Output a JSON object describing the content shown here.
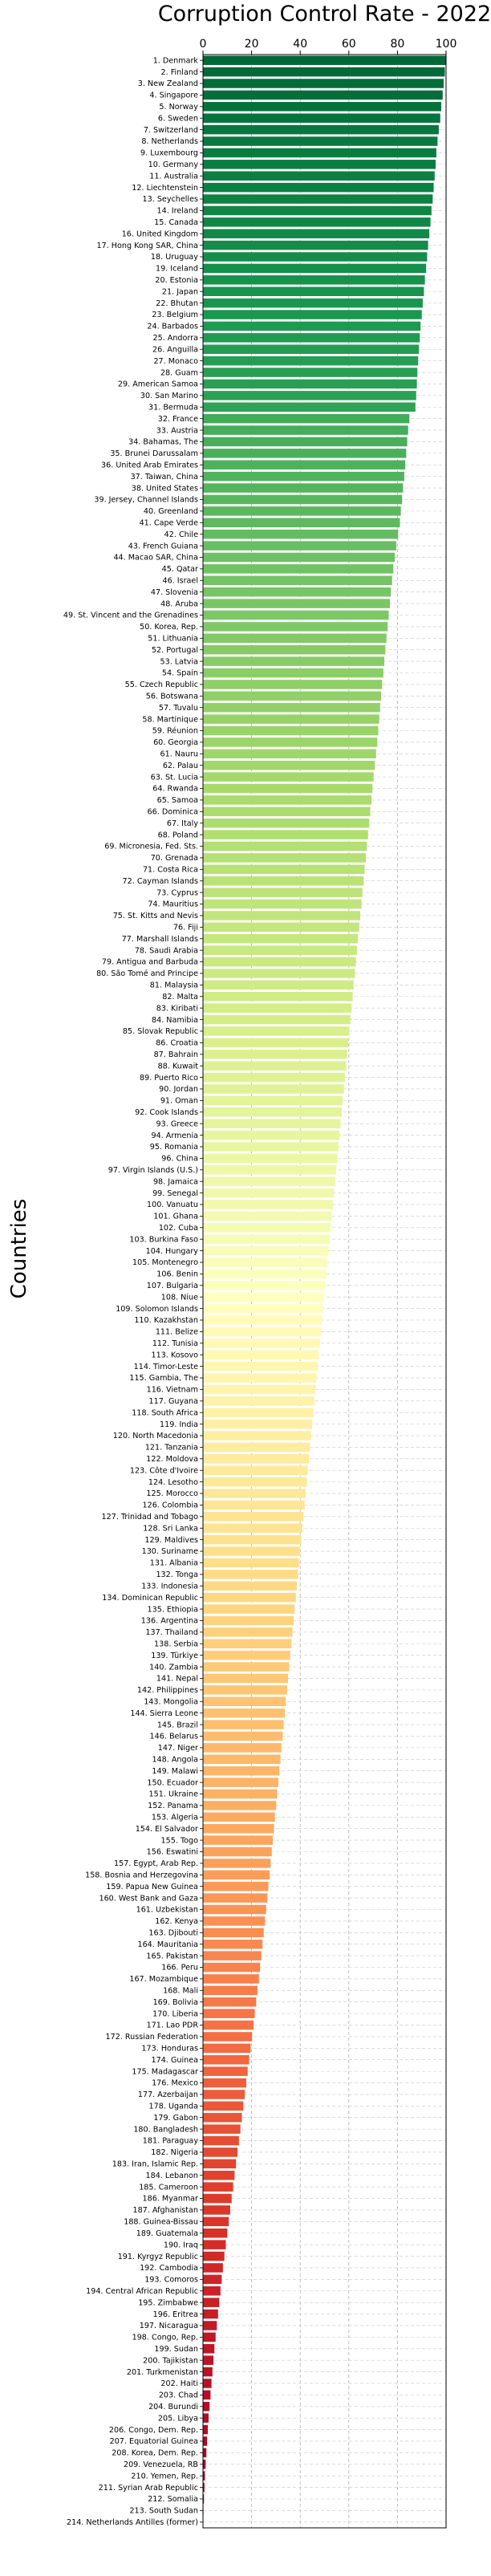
{
  "chart_data": {
    "type": "bar",
    "orientation": "horizontal",
    "title": "Corruption Control Rate - 2022",
    "xlabel": "",
    "ylabel": "Countries",
    "xlim": [
      0,
      100
    ],
    "xticks": [
      "0",
      "20",
      "40",
      "60",
      "80",
      "100"
    ],
    "x_axis_position": "top",
    "grid": true,
    "colormap": "red-yellow-green",
    "categories": [
      "1. Denmark",
      "2. Finland",
      "3. New Zealand",
      "4. Singapore",
      "5. Norway",
      "6. Sweden",
      "7. Switzerland",
      "8. Netherlands",
      "9. Luxembourg",
      "10. Germany",
      "11. Australia",
      "12. Liechtenstein",
      "13. Seychelles",
      "14. Ireland",
      "15. Canada",
      "16. United Kingdom",
      "17. Hong Kong SAR, China",
      "18. Uruguay",
      "19. Iceland",
      "20. Estonia",
      "21. Japan",
      "22. Bhutan",
      "23. Belgium",
      "24. Barbados",
      "25. Andorra",
      "26. Anguilla",
      "27. Monaco",
      "28. Guam",
      "29. American Samoa",
      "30. San Marino",
      "31. Bermuda",
      "32. France",
      "33. Austria",
      "34. Bahamas, The",
      "35. Brunei Darussalam",
      "36. United Arab Emirates",
      "37. Taiwan, China",
      "38. United States",
      "39. Jersey, Channel Islands",
      "40. Greenland",
      "41. Cape Verde",
      "42. Chile",
      "43. French Guiana",
      "44. Macao SAR, China",
      "45. Qatar",
      "46. Israel",
      "47. Slovenia",
      "48. Aruba",
      "49. St. Vincent and the Grenadines",
      "50. Korea, Rep.",
      "51. Lithuania",
      "52. Portugal",
      "53. Latvia",
      "54. Spain",
      "55. Czech Republic",
      "56. Botswana",
      "57. Tuvalu",
      "58. Martinique",
      "59. Réunion",
      "60. Georgia",
      "61. Nauru",
      "62. Palau",
      "63. St. Lucia",
      "64. Rwanda",
      "65. Samoa",
      "66. Dominica",
      "67. Italy",
      "68. Poland",
      "69. Micronesia, Fed. Sts.",
      "70. Grenada",
      "71. Costa Rica",
      "72. Cayman Islands",
      "73. Cyprus",
      "74. Mauritius",
      "75. St. Kitts and Nevis",
      "76. Fiji",
      "77. Marshall Islands",
      "78. Saudi Arabia",
      "79. Antigua and Barbuda",
      "80. São Tomé and Principe",
      "81. Malaysia",
      "82. Malta",
      "83. Kiribati",
      "84. Namibia",
      "85. Slovak Republic",
      "86. Croatia",
      "87. Bahrain",
      "88. Kuwait",
      "89. Puerto Rico",
      "90. Jordan",
      "91. Oman",
      "92. Cook Islands",
      "93. Greece",
      "94. Armenia",
      "95. Romania",
      "96. China",
      "97. Virgin Islands (U.S.)",
      "98. Jamaica",
      "99. Senegal",
      "100. Vanuatu",
      "101. Ghana",
      "102. Cuba",
      "103. Burkina Faso",
      "104. Hungary",
      "105. Montenegro",
      "106. Benin",
      "107. Bulgaria",
      "108. Niue",
      "109. Solomon Islands",
      "110. Kazakhstan",
      "111. Belize",
      "112. Tunisia",
      "113. Kosovo",
      "114. Timor-Leste",
      "115. Gambia, The",
      "116. Vietnam",
      "117. Guyana",
      "118. South Africa",
      "119. India",
      "120. North Macedonia",
      "121. Tanzania",
      "122. Moldova",
      "123. Côte d'Ivoire",
      "124. Lesotho",
      "125. Morocco",
      "126. Colombia",
      "127. Trinidad and Tobago",
      "128. Sri Lanka",
      "129. Maldives",
      "130. Suriname",
      "131. Albania",
      "132. Tonga",
      "133. Indonesia",
      "134. Dominican Republic",
      "135. Ethiopia",
      "136. Argentina",
      "137. Thailand",
      "138. Serbia",
      "139. Türkiye",
      "140. Zambia",
      "141. Nepal",
      "142. Philippines",
      "143. Mongolia",
      "144. Sierra Leone",
      "145. Brazil",
      "146. Belarus",
      "147. Niger",
      "148. Angola",
      "149. Malawi",
      "150. Ecuador",
      "151. Ukraine",
      "152. Panama",
      "153. Algeria",
      "154. El Salvador",
      "155. Togo",
      "156. Eswatini",
      "157. Egypt, Arab Rep.",
      "158. Bosnia and Herzegovina",
      "159. Papua New Guinea",
      "160. West Bank and Gaza",
      "161. Uzbekistan",
      "162. Kenya",
      "163. Djibouti",
      "164. Mauritania",
      "165. Pakistan",
      "166. Peru",
      "167. Mozambique",
      "168. Mali",
      "169. Bolivia",
      "170. Liberia",
      "171. Lao PDR",
      "172. Russian Federation",
      "173. Honduras",
      "174. Guinea",
      "175. Madagascar",
      "176. Mexico",
      "177. Azerbaijan",
      "178. Uganda",
      "179. Gabon",
      "180. Bangladesh",
      "181. Paraguay",
      "182. Nigeria",
      "183. Iran, Islamic Rep.",
      "184. Lebanon",
      "185. Cameroon",
      "186. Myanmar",
      "187. Afghanistan",
      "188. Guinea-Bissau",
      "189. Guatemala",
      "190. Iraq",
      "191. Kyrgyz Republic",
      "192. Cambodia",
      "193. Comoros",
      "194. Central African Republic",
      "195. Zimbabwe",
      "196. Eritrea",
      "197. Nicaragua",
      "198. Congo, Rep.",
      "199. Sudan",
      "200. Tajikistan",
      "201. Turkmenistan",
      "202. Haiti",
      "203. Chad",
      "204. Burundi",
      "205. Libya",
      "206. Congo, Dem. Rep.",
      "207. Equatorial Guinea",
      "208. Korea, Dem. Rep.",
      "209. Venezuela, RB",
      "210. Yemen, Rep.",
      "211. Syrian Arab Republic",
      "212. Somalia",
      "213. South Sudan",
      "214. Netherlands Antilles (former)"
    ],
    "values": [
      100,
      99.5,
      99,
      98.6,
      98,
      97.6,
      97,
      96.5,
      96,
      95.7,
      95.3,
      94.9,
      94.5,
      94,
      93.6,
      93.1,
      92.6,
      92.2,
      91.8,
      91.3,
      90.9,
      90.4,
      90,
      89.5,
      89.2,
      88.8,
      88.5,
      88.2,
      88,
      87.7,
      87.4,
      84.9,
      84.4,
      84,
      83.6,
      83.2,
      82.8,
      82.3,
      81.9,
      81.4,
      81,
      80.3,
      79.5,
      78.9,
      78.3,
      77.8,
      77.3,
      76.9,
      76.4,
      76,
      75.5,
      75,
      74.6,
      74.2,
      73.7,
      73.3,
      72.9,
      72.5,
      72.1,
      71.7,
      71.2,
      70.7,
      70.2,
      69.7,
      69.3,
      68.8,
      68.4,
      67.9,
      67.4,
      67,
      66.5,
      66.1,
      65.6,
      65.2,
      64.7,
      64.3,
      63.8,
      63.3,
      62.9,
      62.5,
      62,
      61.6,
      61.1,
      60.7,
      60.2,
      59.8,
      59.3,
      58.9,
      58.4,
      58,
      57.5,
      57.1,
      56.6,
      56.2,
      55.7,
      55.3,
      54.8,
      54.4,
      53.9,
      53.5,
      53,
      52.6,
      52.1,
      51.7,
      51.2,
      50.8,
      50.3,
      49.9,
      49.4,
      49,
      48.5,
      48.1,
      47.6,
      47.2,
      46.7,
      46.3,
      45.8,
      45.4,
      44.9,
      44.5,
      44,
      43.6,
      43.1,
      42.7,
      42.2,
      41.8,
      41.3,
      40.9,
      40.4,
      40,
      39.5,
      39.1,
      38.6,
      38.2,
      37.7,
      37.3,
      36.8,
      36.4,
      35.9,
      35.5,
      35,
      34.6,
      34.1,
      33.7,
      33.2,
      32.8,
      32.3,
      31.9,
      31.4,
      31,
      30.5,
      30.1,
      29.6,
      29.2,
      28.7,
      28.3,
      27.8,
      27.4,
      26.9,
      26.5,
      26,
      25.5,
      25,
      24.5,
      24,
      23.5,
      23,
      22.4,
      21.9,
      21.3,
      20.8,
      20.2,
      19.6,
      19,
      18.4,
      17.8,
      17.2,
      16.6,
      16,
      15.4,
      14.8,
      14.2,
      13.6,
      13,
      12.4,
      11.8,
      11.2,
      10.6,
      10,
      9.4,
      8.8,
      8.2,
      7.7,
      7.2,
      6.7,
      6.2,
      5.7,
      5.2,
      4.7,
      4.3,
      3.9,
      3.5,
      3.1,
      2.7,
      2.3,
      2,
      1.7,
      1.4,
      1.1,
      0.8,
      0.6,
      0.4,
      0.2,
      0
    ]
  }
}
